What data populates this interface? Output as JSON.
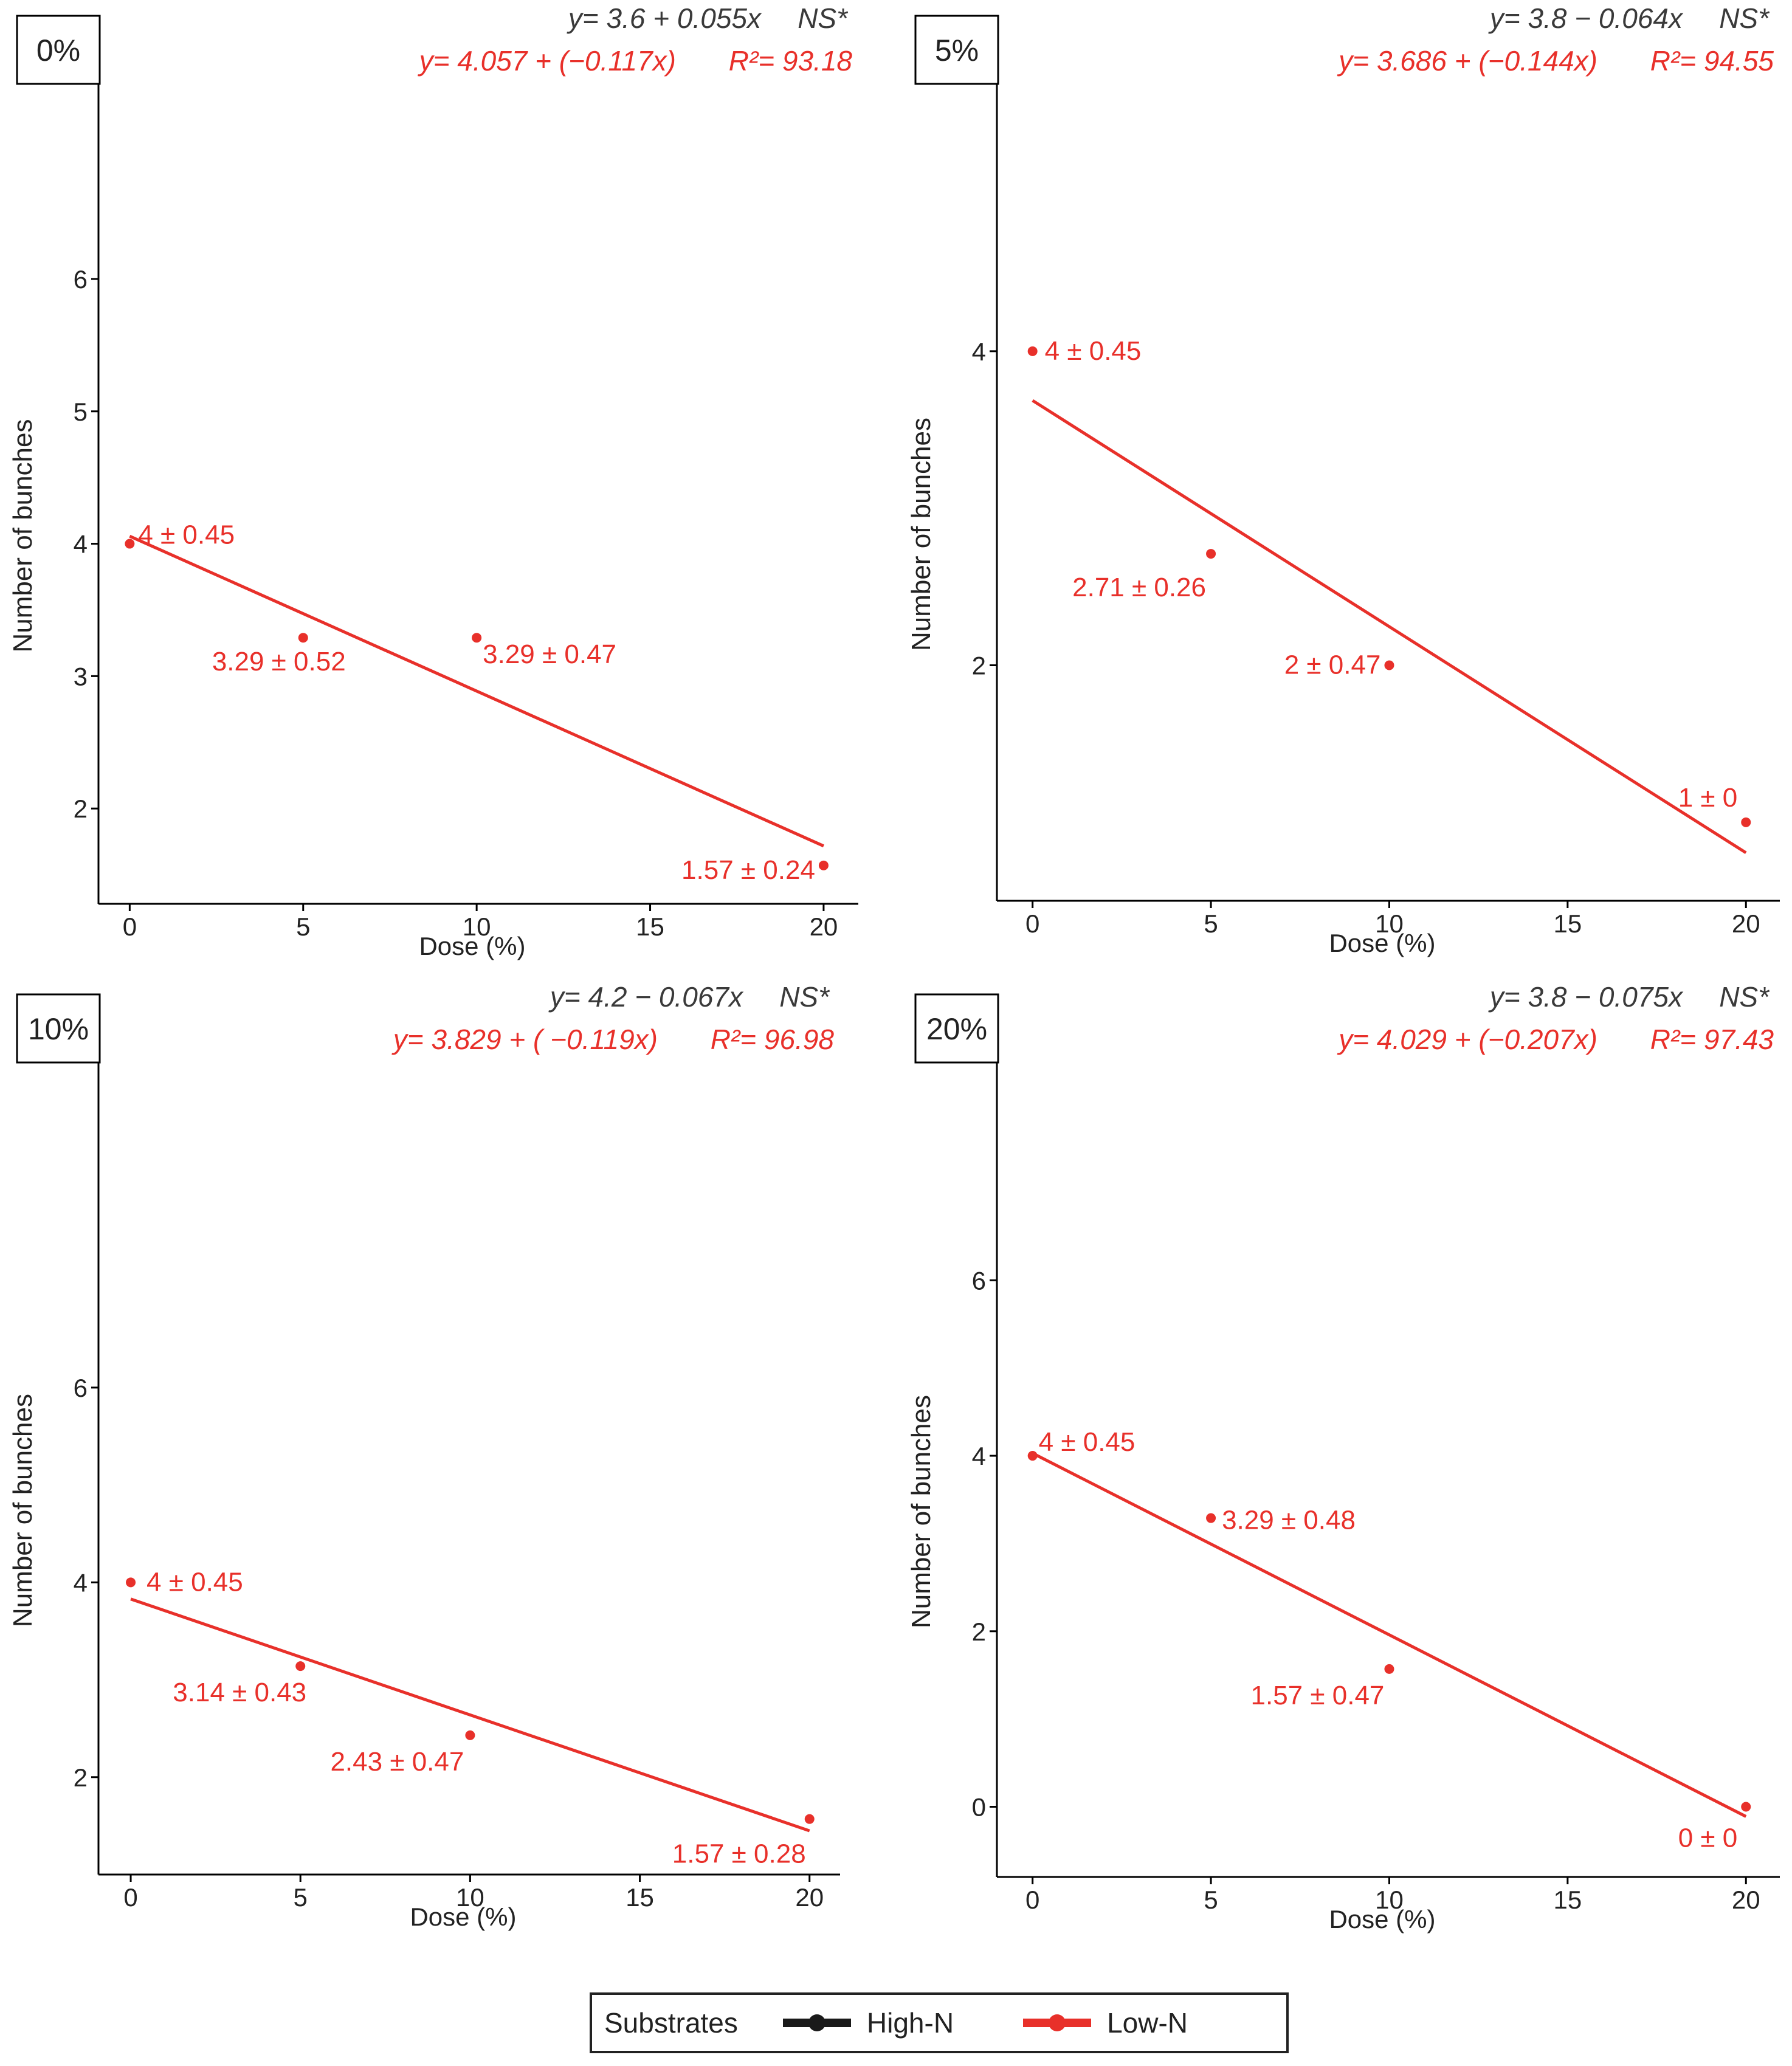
{
  "legend": {
    "title": "Substrates",
    "items": [
      {
        "label": "High-N",
        "color": "#1a1a1a"
      },
      {
        "label": "Low-N",
        "color": "#e8302a"
      }
    ]
  },
  "chart_data": [
    {
      "type": "scatter",
      "panel_label": "0%",
      "xlabel": "Dose (%)",
      "ylabel": "Number of bunches",
      "xlim": [
        -0.9,
        21
      ],
      "ylim": [
        1.28,
        7.85
      ],
      "x_ticks": [
        0,
        5,
        10,
        15,
        20
      ],
      "y_ticks": [
        2,
        3,
        4,
        5,
        6
      ],
      "eq_high": "y= 3.6 + 0.055x",
      "sig_high": "NS*",
      "eq_low": "y= 4.057 + (−0.117x)",
      "r2_low": "R²= 93.18",
      "colors": {
        "high": "#3a3a3a",
        "low": "#e8302a"
      },
      "fit_low": {
        "intercept": 4.057,
        "slope": -0.117,
        "x_start": 0,
        "x_end": 20
      },
      "series": [
        {
          "name": "Low-N",
          "x": [
            0,
            5,
            10,
            20
          ],
          "y": [
            4.0,
            3.29,
            3.29,
            1.57
          ],
          "labels": [
            "4 ± 0.45",
            "3.29 ± 0.52",
            "3.29 ± 0.47",
            "1.57 ± 0.24"
          ]
        }
      ]
    },
    {
      "type": "scatter",
      "panel_label": "5%",
      "xlabel": "Dose (%)",
      "ylabel": "Number of bunches",
      "xlim": [
        -1.0,
        20.95
      ],
      "ylim": [
        0.5,
        6.02
      ],
      "x_ticks": [
        0,
        5,
        10,
        15,
        20
      ],
      "y_ticks": [
        2,
        4
      ],
      "eq_high": "y= 3.8 − 0.064x",
      "sig_high": "NS*",
      "eq_low": "y= 3.686 + (−0.144x)",
      "r2_low": "R²= 94.55",
      "colors": {
        "high": "#3a3a3a",
        "low": "#e8302a"
      },
      "fit_low": {
        "intercept": 3.686,
        "slope": -0.144,
        "x_start": 0,
        "x_end": 20
      },
      "series": [
        {
          "name": "Low-N",
          "x": [
            0,
            5,
            10,
            20
          ],
          "y": [
            4.0,
            2.71,
            2.0,
            1.0
          ],
          "labels": [
            "4 ± 0.45",
            "2.71 ± 0.26",
            "2 ± 0.47",
            "1 ± 0"
          ]
        }
      ]
    },
    {
      "type": "scatter",
      "panel_label": "10%",
      "xlabel": "Dose (%)",
      "ylabel": "Number of bunches",
      "xlim": [
        -0.95,
        20.9
      ],
      "ylim": [
        1.0,
        9.85
      ],
      "x_ticks": [
        0,
        5,
        10,
        15,
        20
      ],
      "y_ticks": [
        2,
        4,
        6
      ],
      "eq_high": "y= 4.2 − 0.067x",
      "sig_high": "NS*",
      "eq_low": "y= 3.829 + ( −0.119x)",
      "r2_low": "R²= 96.98",
      "colors": {
        "high": "#3a3a3a",
        "low": "#e8302a"
      },
      "fit_low": {
        "intercept": 3.829,
        "slope": -0.119,
        "x_start": 0,
        "x_end": 20
      },
      "series": [
        {
          "name": "Low-N",
          "x": [
            0,
            5,
            10,
            20
          ],
          "y": [
            4.0,
            3.14,
            2.43,
            1.57
          ],
          "labels": [
            "4 ± 0.45",
            "3.14 ± 0.43",
            "2.43 ± 0.47",
            "1.57 ± 0.28"
          ]
        }
      ]
    },
    {
      "type": "scatter",
      "panel_label": "20%",
      "xlabel": "Dose (%)",
      "ylabel": "Number of bunches",
      "xlim": [
        -1.0,
        20.95
      ],
      "ylim": [
        -0.8,
        9.05
      ],
      "x_ticks": [
        0,
        5,
        10,
        15,
        20
      ],
      "y_ticks": [
        0,
        2,
        4,
        6
      ],
      "eq_high": "y= 3.8 − 0.075x",
      "sig_high": "NS*",
      "eq_low": "y= 4.029 + (−0.207x)",
      "r2_low": "R²= 97.43",
      "colors": {
        "high": "#3a3a3a",
        "low": "#e8302a"
      },
      "fit_low": {
        "intercept": 4.029,
        "slope": -0.207,
        "x_start": 0,
        "x_end": 20
      },
      "series": [
        {
          "name": "Low-N",
          "x": [
            0,
            5,
            10,
            20
          ],
          "y": [
            4.0,
            3.29,
            1.57,
            0.0
          ],
          "labels": [
            "4 ± 0.45",
            "3.29 ± 0.48",
            "1.57 ± 0.47",
            "0 ± 0"
          ]
        }
      ]
    }
  ]
}
